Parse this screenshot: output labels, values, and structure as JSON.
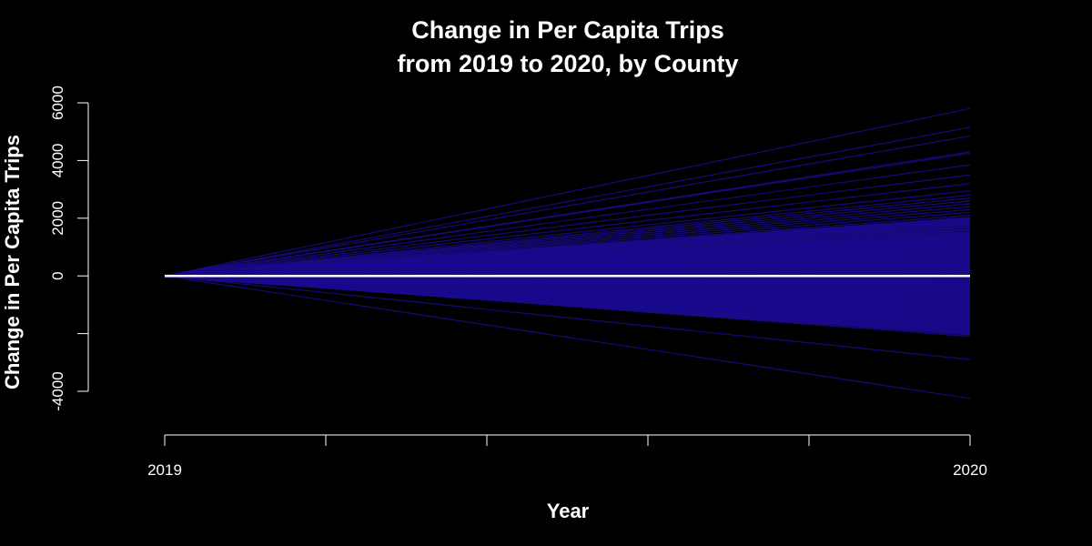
{
  "chart_data": {
    "type": "line",
    "title_line1": "Change in Per Capita Trips",
    "title_line2": "from 2019 to 2020, by County",
    "xlabel": "Year",
    "ylabel": "Change in Per Capita Trips",
    "x": [
      2019,
      2020
    ],
    "xlim": [
      2019,
      2020
    ],
    "ylim": [
      -4000,
      6000
    ],
    "x_ticks": [
      2019,
      2019.2,
      2019.4,
      2019.6,
      2019.8,
      2020
    ],
    "x_tick_labels": [
      "2019",
      "",
      "",
      "",
      "",
      "2020"
    ],
    "y_ticks": [
      -4000,
      -2000,
      0,
      2000,
      4000,
      6000
    ],
    "y_tick_labels": [
      "-4000",
      "",
      "0",
      "2000",
      "4000",
      "6000"
    ],
    "grid": false,
    "legend": "none",
    "line_color": "#1a0a8c",
    "zero_line_color": "#ffffff",
    "background": "#000000",
    "county_changes_2020": [
      5800,
      5150,
      4850,
      4300,
      4250,
      3850,
      3500,
      3200,
      2950,
      2800,
      2700,
      2600,
      2500,
      2400,
      2300,
      2200,
      2100,
      2000,
      1950,
      1900,
      1850,
      1800,
      1700,
      1600,
      1500,
      1450,
      1400,
      1350,
      1300,
      1250,
      1200,
      1150,
      1100,
      1050,
      1000,
      950,
      900,
      850,
      800,
      750,
      700,
      650,
      600,
      550,
      500,
      450,
      400,
      350,
      300,
      250,
      200,
      150,
      100,
      50,
      -50,
      -100,
      -150,
      -200,
      -250,
      -300,
      -350,
      -400,
      -450,
      -500,
      -550,
      -600,
      -650,
      -700,
      -750,
      -800,
      -850,
      -900,
      -950,
      -1000,
      -1050,
      -1100,
      -1150,
      -1200,
      -1250,
      -1300,
      -1350,
      -1400,
      -1450,
      -1500,
      -1550,
      -1600,
      -1650,
      -1700,
      -1750,
      -1800,
      -1850,
      -1900,
      -1950,
      -2000,
      -2050,
      -2100,
      -2900,
      -4250
    ],
    "zero_line": [
      0,
      0
    ]
  }
}
